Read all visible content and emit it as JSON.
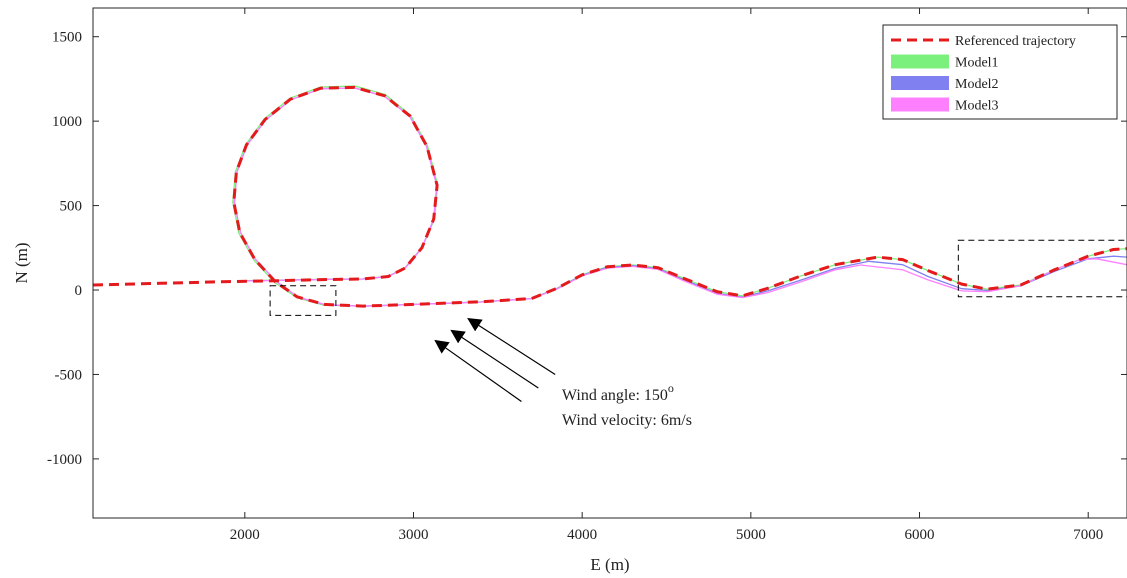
{
  "chart_data": {
    "type": "line",
    "xlabel": "E (m)",
    "ylabel": "N (m)",
    "xlim": [
      1100,
      7230
    ],
    "ylim": [
      -1350,
      1670
    ],
    "xticks": [
      2000,
      3000,
      4000,
      5000,
      6000,
      7000
    ],
    "xtick_labels": [
      "2000",
      "3000",
      "4000",
      "5000",
      "6000",
      "7000"
    ],
    "yticks": [
      1500,
      1000,
      500,
      0,
      -500,
      -1000
    ],
    "ytick_labels": [
      "1500",
      "1000",
      "500",
      "0",
      "-500",
      "-1000"
    ],
    "grid": false,
    "legend_position": "top-right",
    "legend_entries": [
      {
        "label": "Referenced trajectory",
        "color": "#e41a1c",
        "style": "dashed"
      },
      {
        "label": "Model1",
        "color": "#7cf07c",
        "style": "patch"
      },
      {
        "label": "Model2",
        "color": "#8080f0",
        "style": "patch"
      },
      {
        "label": "Model3",
        "color": "#ff80ff",
        "style": "patch"
      }
    ],
    "series": [
      {
        "name": "Referenced trajectory",
        "color": "#e41a1c",
        "style": "dashed",
        "points": [
          [
            1100,
            30
          ],
          [
            1500,
            40
          ],
          [
            1900,
            50
          ],
          [
            2200,
            55
          ],
          [
            2500,
            62
          ],
          [
            2700,
            65
          ],
          [
            2850,
            80
          ],
          [
            2950,
            130
          ],
          [
            3050,
            250
          ],
          [
            3120,
            420
          ],
          [
            3140,
            620
          ],
          [
            3080,
            850
          ],
          [
            2980,
            1030
          ],
          [
            2830,
            1150
          ],
          [
            2650,
            1200
          ],
          [
            2450,
            1195
          ],
          [
            2270,
            1130
          ],
          [
            2120,
            1010
          ],
          [
            2010,
            860
          ],
          [
            1950,
            700
          ],
          [
            1935,
            520
          ],
          [
            1970,
            340
          ],
          [
            2060,
            180
          ],
          [
            2180,
            50
          ],
          [
            2310,
            -40
          ],
          [
            2470,
            -85
          ],
          [
            2700,
            -95
          ],
          [
            3000,
            -85
          ],
          [
            3400,
            -70
          ],
          [
            3700,
            -50
          ],
          [
            3850,
            10
          ],
          [
            4000,
            90
          ],
          [
            4150,
            138
          ],
          [
            4300,
            148
          ],
          [
            4450,
            132
          ],
          [
            4600,
            70
          ],
          [
            4800,
            -10
          ],
          [
            4950,
            -35
          ],
          [
            5100,
            10
          ],
          [
            5300,
            85
          ],
          [
            5500,
            150
          ],
          [
            5750,
            195
          ],
          [
            5900,
            180
          ],
          [
            6050,
            115
          ],
          [
            6250,
            35
          ],
          [
            6400,
            5
          ],
          [
            6600,
            30
          ],
          [
            6800,
            120
          ],
          [
            7000,
            200
          ],
          [
            7150,
            240
          ],
          [
            7230,
            245
          ]
        ]
      },
      {
        "name": "Model1",
        "color": "#7cf07c",
        "points": [
          [
            2000,
            55
          ],
          [
            2500,
            64
          ],
          [
            2700,
            66
          ],
          [
            2850,
            82
          ],
          [
            2950,
            132
          ],
          [
            3050,
            252
          ],
          [
            3125,
            422
          ],
          [
            3143,
            622
          ],
          [
            3083,
            855
          ],
          [
            2982,
            1036
          ],
          [
            2832,
            1158
          ],
          [
            2652,
            1208
          ],
          [
            2450,
            1202
          ],
          [
            2268,
            1136
          ],
          [
            2116,
            1014
          ],
          [
            2005,
            862
          ],
          [
            1944,
            700
          ],
          [
            1929,
            520
          ],
          [
            1965,
            336
          ],
          [
            2056,
            174
          ],
          [
            2178,
            44
          ],
          [
            2310,
            -46
          ],
          [
            2470,
            -90
          ],
          [
            2700,
            -95
          ],
          [
            3000,
            -85
          ],
          [
            3400,
            -70
          ],
          [
            3700,
            -50
          ],
          [
            3850,
            10
          ],
          [
            4000,
            90
          ],
          [
            4150,
            138
          ],
          [
            4300,
            148
          ],
          [
            4450,
            132
          ],
          [
            4600,
            70
          ],
          [
            4800,
            -10
          ],
          [
            4950,
            -35
          ],
          [
            5100,
            10
          ],
          [
            5300,
            85
          ],
          [
            5500,
            150
          ],
          [
            5750,
            195
          ],
          [
            5900,
            180
          ],
          [
            6050,
            115
          ],
          [
            6250,
            35
          ],
          [
            6400,
            5
          ],
          [
            6600,
            30
          ],
          [
            6800,
            120
          ],
          [
            7000,
            200
          ],
          [
            7150,
            240
          ],
          [
            7230,
            245
          ]
        ]
      },
      {
        "name": "Model2",
        "color": "#8080f0",
        "points": [
          [
            2000,
            54
          ],
          [
            2500,
            63
          ],
          [
            2700,
            65
          ],
          [
            2850,
            80
          ],
          [
            2950,
            130
          ],
          [
            3050,
            249
          ],
          [
            3120,
            419
          ],
          [
            3138,
            619
          ],
          [
            3078,
            849
          ],
          [
            2978,
            1028
          ],
          [
            2828,
            1147
          ],
          [
            2650,
            1197
          ],
          [
            2452,
            1192
          ],
          [
            2273,
            1127
          ],
          [
            2123,
            1007
          ],
          [
            2013,
            858
          ],
          [
            1953,
            698
          ],
          [
            1938,
            520
          ],
          [
            1974,
            342
          ],
          [
            2063,
            182
          ],
          [
            2185,
            52
          ],
          [
            2315,
            -42
          ],
          [
            2480,
            -88
          ],
          [
            2700,
            -96
          ],
          [
            3000,
            -86
          ],
          [
            3400,
            -71
          ],
          [
            3700,
            -51
          ],
          [
            3850,
            8
          ],
          [
            4000,
            87
          ],
          [
            4150,
            134
          ],
          [
            4300,
            144
          ],
          [
            4450,
            127
          ],
          [
            4600,
            62
          ],
          [
            4800,
            -20
          ],
          [
            4950,
            -42
          ],
          [
            5100,
            -5
          ],
          [
            5300,
            60
          ],
          [
            5500,
            128
          ],
          [
            5700,
            170
          ],
          [
            5900,
            150
          ],
          [
            6050,
            80
          ],
          [
            6250,
            8
          ],
          [
            6400,
            -2
          ],
          [
            6600,
            25
          ],
          [
            6800,
            110
          ],
          [
            7000,
            185
          ],
          [
            7150,
            200
          ],
          [
            7230,
            195
          ]
        ]
      },
      {
        "name": "Model3",
        "color": "#ff80ff",
        "points": [
          [
            2000,
            54
          ],
          [
            2500,
            63
          ],
          [
            2700,
            65
          ],
          [
            2850,
            80
          ],
          [
            2950,
            130
          ],
          [
            3050,
            249
          ],
          [
            3120,
            419
          ],
          [
            3138,
            619
          ],
          [
            3078,
            849
          ],
          [
            2978,
            1028
          ],
          [
            2828,
            1147
          ],
          [
            2650,
            1197
          ],
          [
            2452,
            1192
          ],
          [
            2273,
            1127
          ],
          [
            2123,
            1007
          ],
          [
            2013,
            858
          ],
          [
            1953,
            698
          ],
          [
            1938,
            520
          ],
          [
            1974,
            342
          ],
          [
            2063,
            182
          ],
          [
            2185,
            52
          ],
          [
            2315,
            -42
          ],
          [
            2480,
            -88
          ],
          [
            2700,
            -96
          ],
          [
            3000,
            -86
          ],
          [
            3400,
            -71
          ],
          [
            3700,
            -51
          ],
          [
            3850,
            6
          ],
          [
            4000,
            84
          ],
          [
            4150,
            130
          ],
          [
            4300,
            140
          ],
          [
            4450,
            122
          ],
          [
            4600,
            55
          ],
          [
            4800,
            -25
          ],
          [
            4950,
            -45
          ],
          [
            5100,
            -15
          ],
          [
            5300,
            50
          ],
          [
            5500,
            120
          ],
          [
            5650,
            148
          ],
          [
            5900,
            120
          ],
          [
            6050,
            60
          ],
          [
            6250,
            -5
          ],
          [
            6400,
            -10
          ],
          [
            6600,
            25
          ],
          [
            6800,
            120
          ],
          [
            6950,
            180
          ],
          [
            7050,
            185
          ],
          [
            7230,
            150
          ]
        ]
      }
    ],
    "zoom_boxes": [
      {
        "x": [
          2150,
          2540
        ],
        "y": [
          -150,
          25
        ]
      },
      {
        "x": [
          6230,
          7230
        ],
        "y": [
          -40,
          295
        ]
      }
    ],
    "annotations": [
      {
        "text_parts": [
          "Wind angle: 150",
          "o"
        ],
        "x": 3880,
        "y": -650
      },
      {
        "text": "Wind velocity: 6m/s",
        "x": 3880,
        "y": -800
      }
    ],
    "wind_arrows": [
      {
        "from": [
          3640,
          -660
        ],
        "to": [
          3130,
          -300
        ]
      },
      {
        "from": [
          3740,
          -580
        ],
        "to": [
          3225,
          -240
        ]
      },
      {
        "from": [
          3840,
          -500
        ],
        "to": [
          3325,
          -170
        ]
      }
    ]
  }
}
